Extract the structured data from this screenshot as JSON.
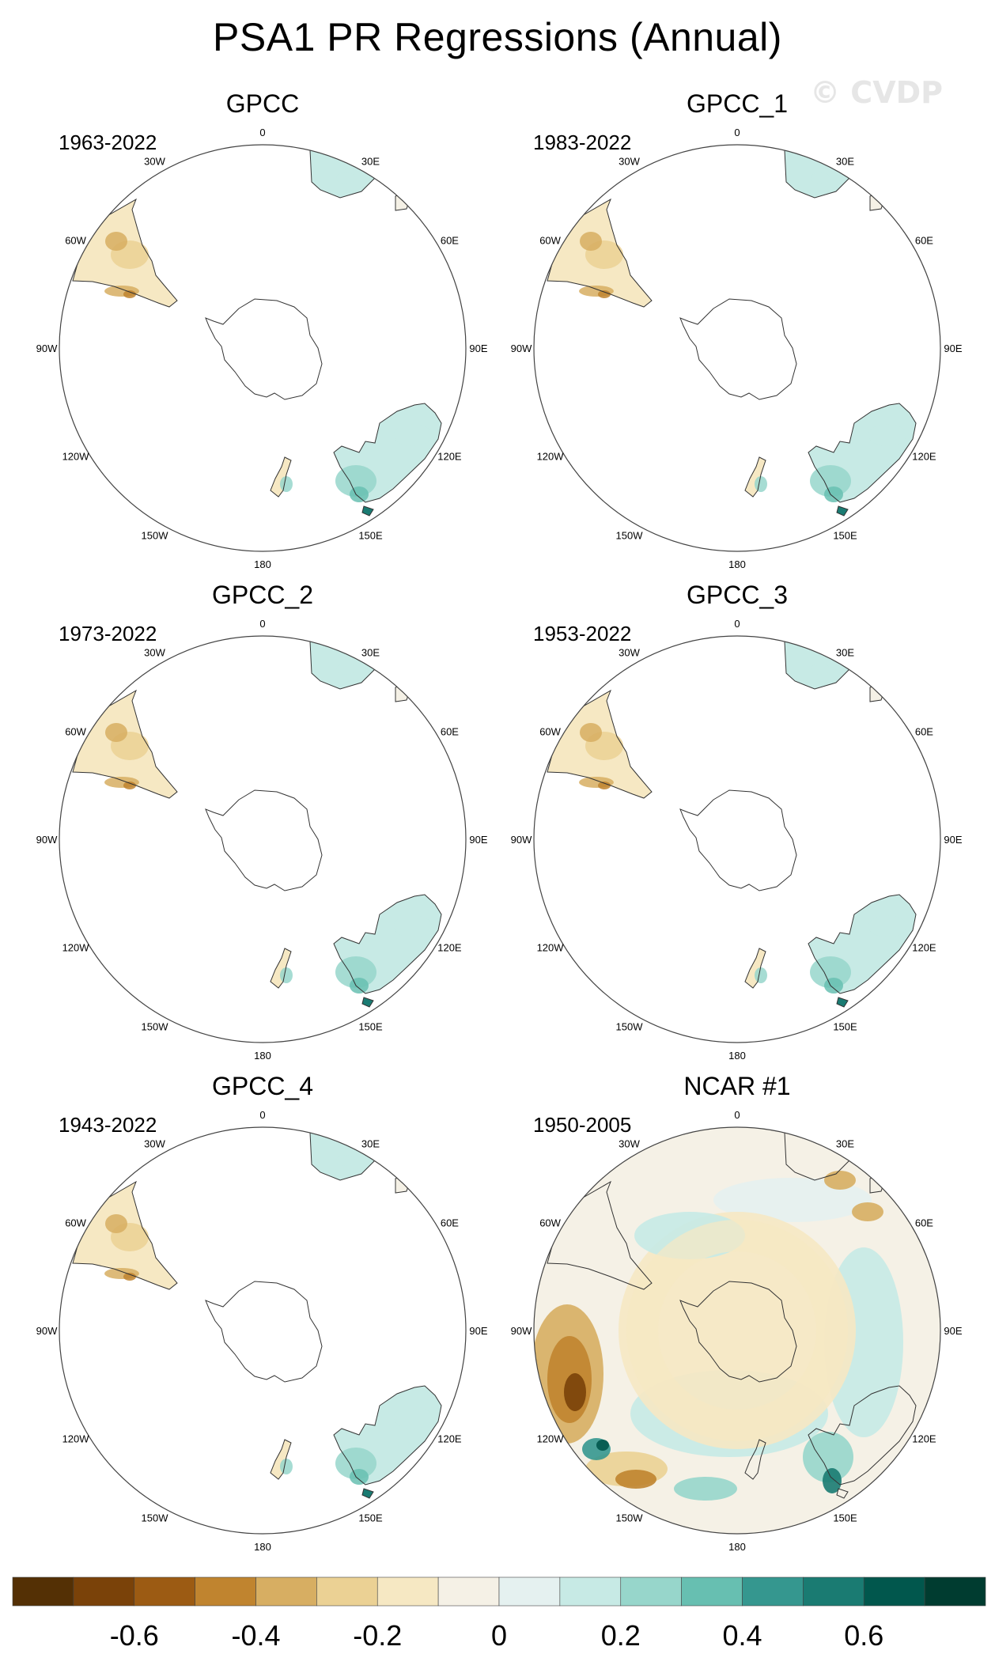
{
  "title": "PSA1 PR Regressions (Annual)",
  "watermark": "© CVDP",
  "lon_labels": [
    "0",
    "30E",
    "60E",
    "90E",
    "120E",
    "150E",
    "180",
    "150W",
    "120W",
    "90W",
    "60W",
    "30W"
  ],
  "panels": [
    {
      "name": "GPCC",
      "period": "1963-2022",
      "field": "land"
    },
    {
      "name": "GPCC_1",
      "period": "1983-2022",
      "field": "land"
    },
    {
      "name": "GPCC_2",
      "period": "1973-2022",
      "field": "land"
    },
    {
      "name": "GPCC_3",
      "period": "1953-2022",
      "field": "land"
    },
    {
      "name": "GPCC_4",
      "period": "1943-2022",
      "field": "land"
    },
    {
      "name": "NCAR #1",
      "period": "1950-2005",
      "field": "global"
    }
  ],
  "colorbar": {
    "colors": [
      "#543005",
      "#7a4209",
      "#9c5b13",
      "#c0842f",
      "#d7ae62",
      "#ebd194",
      "#f6e8c3",
      "#f5f1e6",
      "#e5f1f0",
      "#c7eae5",
      "#97d6cb",
      "#67bfb1",
      "#35978f",
      "#1a7b72",
      "#01574d",
      "#003c30"
    ],
    "ticks": [
      {
        "label": "-0.6",
        "value": -0.6
      },
      {
        "label": "-0.4",
        "value": -0.4
      },
      {
        "label": "-0.2",
        "value": -0.2
      },
      {
        "label": "0",
        "value": 0
      },
      {
        "label": "0.2",
        "value": 0.2
      },
      {
        "label": "0.4",
        "value": 0.4
      },
      {
        "label": "0.6",
        "value": 0.6
      }
    ],
    "range": [
      -0.8,
      0.8
    ]
  }
}
